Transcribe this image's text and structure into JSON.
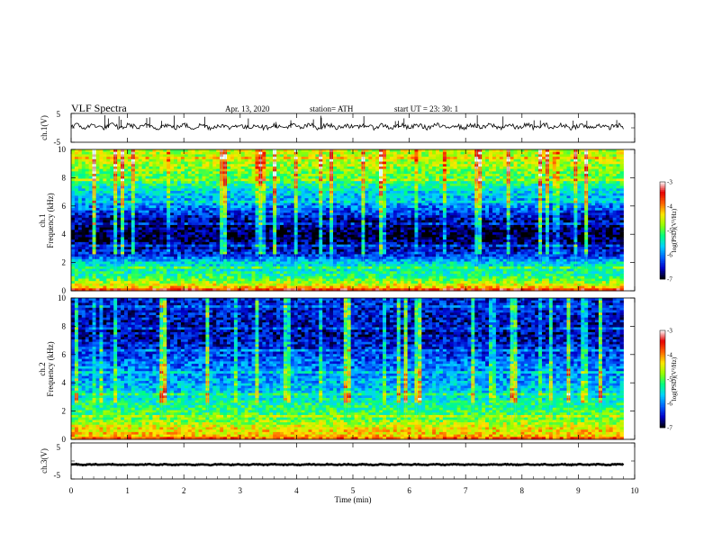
{
  "header": {
    "title": "VLF Spectra",
    "date": "Apr. 13, 2020",
    "station": "station= ATH",
    "start": "start  UT  =    23: 30: 1"
  },
  "chart_data": [
    {
      "type": "line",
      "panel": "ch1-voltage",
      "ylabel": "ch.1(V)",
      "ylim": [
        -5,
        5
      ],
      "yticks": [
        "5",
        "-5"
      ],
      "baseline_v": 0.5,
      "color": "#000000"
    },
    {
      "type": "heatmap",
      "panel": "ch1-spectrogram",
      "ylabel": "ch.1\nFrequency (kHz)",
      "ylabel_line1": "ch.1",
      "ylabel_line2": "Frequency (kHz)",
      "ylim": [
        0,
        10
      ],
      "yticks": [
        "0",
        "2",
        "4",
        "6",
        "8",
        "10"
      ],
      "colorbar": {
        "label": "log(PSD)(V²/Hz)",
        "range": [
          -7,
          -3
        ],
        "ticks": [
          "-3",
          "-4",
          "-5",
          "-6",
          "-7"
        ],
        "colors": [
          "#000000",
          "#0000c8",
          "#0064ff",
          "#00d2ff",
          "#00ff80",
          "#96ff00",
          "#ffe600",
          "#ff6400",
          "#e60000",
          "#ffffff"
        ]
      },
      "level_profile_khz": [
        {
          "f": 0.0,
          "level": -3.8
        },
        {
          "f": 0.5,
          "level": -4.6
        },
        {
          "f": 1.0,
          "level": -5.2
        },
        {
          "f": 2.0,
          "level": -5.6
        },
        {
          "f": 2.5,
          "level": -6.3
        },
        {
          "f": 3.0,
          "level": -6.6
        },
        {
          "f": 4.0,
          "level": -6.9
        },
        {
          "f": 5.0,
          "level": -6.6
        },
        {
          "f": 6.0,
          "level": -6.0
        },
        {
          "f": 7.0,
          "level": -5.6
        },
        {
          "f": 8.0,
          "level": -5.0
        },
        {
          "f": 9.0,
          "level": -4.7
        },
        {
          "f": 10.0,
          "level": -4.6
        }
      ]
    },
    {
      "type": "heatmap",
      "panel": "ch2-spectrogram",
      "ylabel_line1": "ch.2",
      "ylabel_line2": "Frequency (kHz)",
      "ylim": [
        0,
        10
      ],
      "yticks": [
        "0",
        "2",
        "4",
        "6",
        "8",
        "10"
      ],
      "colorbar": {
        "label": "log(PSD)(V²/Hz)",
        "range": [
          -7,
          -3
        ],
        "ticks": [
          "-3",
          "-4",
          "-5",
          "-6",
          "-7"
        ],
        "colors": [
          "#000000",
          "#0000c8",
          "#0064ff",
          "#00d2ff",
          "#00ff80",
          "#96ff00",
          "#ffe600",
          "#ff6400",
          "#e60000",
          "#ffffff"
        ]
      },
      "level_profile_khz": [
        {
          "f": 0.0,
          "level": -4.2
        },
        {
          "f": 0.8,
          "level": -4.4
        },
        {
          "f": 1.5,
          "level": -5.0
        },
        {
          "f": 2.5,
          "level": -5.3
        },
        {
          "f": 3.5,
          "level": -5.7
        },
        {
          "f": 4.5,
          "level": -5.9
        },
        {
          "f": 5.5,
          "level": -6.1
        },
        {
          "f": 6.5,
          "level": -6.4
        },
        {
          "f": 7.5,
          "level": -6.6
        },
        {
          "f": 8.5,
          "level": -6.5
        },
        {
          "f": 10.0,
          "level": -6.4
        }
      ]
    },
    {
      "type": "line",
      "panel": "ch3-voltage",
      "ylabel": "ch.3(V)",
      "ylim": [
        -5,
        5
      ],
      "yticks": [
        "5",
        "-5"
      ],
      "baseline_v": -1.0,
      "color": "#000000"
    }
  ],
  "xaxis": {
    "label": "Time  (min)",
    "xlim": [
      0,
      10
    ],
    "ticks": [
      "0",
      "1",
      "2",
      "3",
      "4",
      "5",
      "6",
      "7",
      "8",
      "9",
      "10"
    ],
    "data_end_min": 9.8
  }
}
